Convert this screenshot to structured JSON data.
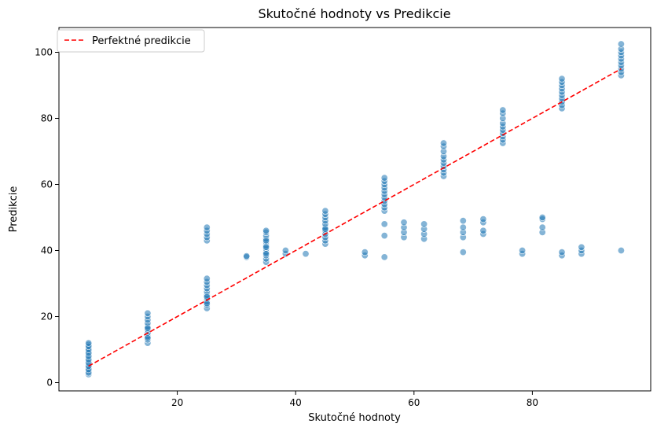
{
  "chart_data": {
    "type": "scatter",
    "title": "Skutočné hodnoty vs Predikcie",
    "xlabel": "Skutočné hodnoty",
    "ylabel": "Predikcie",
    "xlim": [
      0,
      100
    ],
    "ylim": [
      -2.5,
      107.5
    ],
    "xticks": [
      20,
      40,
      60,
      80
    ],
    "yticks": [
      0,
      20,
      40,
      60,
      80,
      100
    ],
    "grid": false,
    "legend_position": "top-left",
    "colors": {
      "points": "#1f77b4",
      "perfect_line": "#ff0000"
    },
    "perfect_line": {
      "name": "Perfektné predikcie",
      "x": [
        5,
        95
      ],
      "y": [
        5,
        95
      ]
    },
    "series": [
      {
        "x": [
          5,
          5,
          5,
          5,
          5,
          5,
          5,
          5,
          5,
          5,
          5,
          5,
          5,
          5,
          5,
          5,
          5,
          5,
          5,
          5,
          15,
          15,
          15,
          15,
          15,
          15,
          15,
          15,
          15,
          15,
          15,
          15,
          25,
          25,
          25,
          25,
          25,
          25,
          25,
          25,
          25,
          25,
          25,
          25,
          25,
          25,
          25,
          25,
          25,
          31.7,
          31.7,
          35,
          35,
          35,
          35,
          35,
          35,
          35,
          35,
          35,
          35,
          35,
          35,
          35,
          35,
          38.3,
          38.3,
          41.7,
          45,
          45,
          45,
          45,
          45,
          45,
          45,
          45,
          45,
          45,
          45,
          45,
          51.7,
          51.7,
          55,
          55,
          55,
          55,
          55,
          55,
          55,
          55,
          55,
          55,
          55,
          55,
          55,
          55,
          58.3,
          58.3,
          58.3,
          58.3,
          61.7,
          61.7,
          61.7,
          61.7,
          65,
          65,
          65,
          65,
          65,
          65,
          65,
          65,
          65,
          65,
          68.3,
          68.3,
          68.3,
          68.3,
          68.3,
          71.7,
          71.7,
          71.7,
          71.7,
          75,
          75,
          75,
          75,
          75,
          75,
          75,
          75,
          75,
          75,
          78.3,
          78.3,
          81.7,
          81.7,
          81.7,
          81.7,
          85,
          85,
          85,
          85,
          85,
          85,
          85,
          85,
          85,
          85,
          85,
          85,
          88.3,
          88.3,
          88.3,
          95,
          95,
          95,
          95,
          95,
          95,
          95,
          95,
          95,
          95,
          95
        ],
        "y": [
          2.5,
          3.5,
          4.5,
          5.5,
          6.5,
          7.5,
          8.5,
          9.5,
          10.5,
          11.5,
          3,
          4,
          5,
          6,
          7,
          8,
          9,
          10,
          11,
          12,
          12,
          13,
          14,
          15,
          16,
          17,
          18,
          19,
          20,
          21,
          13.5,
          16.5,
          22.5,
          23.5,
          24.5,
          25.5,
          26.5,
          27.5,
          28.5,
          29.5,
          30.5,
          31.5,
          43,
          44,
          45,
          46,
          47,
          24,
          26,
          38,
          38.3,
          36.5,
          37.5,
          38.5,
          39.5,
          40.5,
          41.5,
          42.5,
          43.5,
          44.5,
          45.5,
          46,
          39,
          41,
          43,
          39,
          40,
          39,
          42,
          43,
          44,
          45,
          46,
          47,
          48,
          49,
          50,
          51,
          52,
          46.5,
          38.5,
          39.5,
          38,
          44.5,
          48,
          52,
          53,
          54,
          55,
          56,
          57,
          58,
          59,
          60,
          61,
          62,
          44,
          45.5,
          47,
          48.5,
          43.5,
          45,
          46.5,
          48,
          62.5,
          63.5,
          64.5,
          65.5,
          66.5,
          67.5,
          68.5,
          70,
          71.5,
          72.5,
          39.5,
          44,
          45.5,
          47,
          49,
          45,
          46,
          48.5,
          49.5,
          72.5,
          73.5,
          74.5,
          75.5,
          76.5,
          77.5,
          78.5,
          80,
          81.5,
          82.5,
          39,
          40,
          45.5,
          47,
          49.5,
          50,
          38.5,
          39.5,
          83,
          84,
          85,
          86,
          87,
          88,
          89,
          90,
          91,
          92,
          39,
          40,
          41,
          40,
          93,
          94,
          95,
          96,
          97,
          98,
          99,
          100,
          101,
          102.5
        ]
      }
    ]
  }
}
